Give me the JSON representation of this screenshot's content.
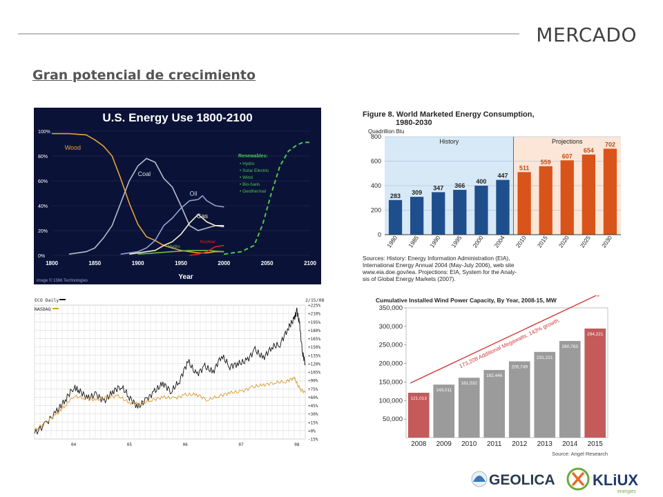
{
  "slide": {
    "title": "MERCADO",
    "subtitle": "Gran potencial de crecimiento"
  },
  "logos": {
    "geolica": "GEOLICA",
    "kliux": "KLiUX",
    "kliux_sub": "energies",
    "geolica_color": "#2b3a4a",
    "kliux_color": "#1f3a68"
  },
  "chart_data": [
    {
      "id": "us-energy",
      "type": "line",
      "title": "U.S. Energy Use 1800-2100",
      "xlabel": "Year",
      "xlim": [
        1800,
        2100
      ],
      "ylim": [
        0,
        100
      ],
      "x_ticks": [
        "1800",
        "1850",
        "1900",
        "1950",
        "2000",
        "2050",
        "2100"
      ],
      "y_ticks": [
        "0%",
        "20%",
        "40%",
        "60%",
        "80%",
        "100%"
      ],
      "legend_title": "Renewables:",
      "legend": [
        "Hydro",
        "Solar Electric",
        "Wind",
        "Bio-fuels",
        "Geothermal"
      ],
      "credit": "image © 1366 Technologies",
      "series": [
        {
          "name": "Wood",
          "color": "#e8a33a",
          "x": [
            1800,
            1820,
            1840,
            1850,
            1860,
            1870,
            1880,
            1890,
            1900,
            1910,
            1920,
            1930,
            1940,
            1950,
            1960,
            1970,
            1980,
            1990,
            2000
          ],
          "y": [
            98,
            98,
            97,
            93,
            88,
            80,
            62,
            42,
            25,
            15,
            12,
            8,
            6,
            4,
            3,
            2,
            2,
            3,
            3
          ]
        },
        {
          "name": "Coal",
          "color": "#b8c0cc",
          "x": [
            1820,
            1840,
            1850,
            1860,
            1870,
            1880,
            1890,
            1900,
            1910,
            1920,
            1930,
            1940,
            1950,
            1960,
            1970,
            1980,
            1990,
            2000
          ],
          "y": [
            1,
            3,
            6,
            14,
            24,
            42,
            60,
            72,
            78,
            75,
            62,
            55,
            40,
            24,
            20,
            22,
            24,
            23
          ]
        },
        {
          "name": "Oil",
          "color": "#8fa6d6",
          "x": [
            1880,
            1890,
            1900,
            1910,
            1920,
            1930,
            1940,
            1950,
            1960,
            1970,
            1975,
            1980,
            1985,
            1990,
            2000
          ],
          "y": [
            1,
            2,
            3,
            6,
            12,
            24,
            30,
            38,
            44,
            45,
            48,
            44,
            42,
            40,
            39
          ]
        },
        {
          "name": "Gas",
          "color": "#f2f2d0",
          "x": [
            1890,
            1900,
            1910,
            1920,
            1930,
            1940,
            1950,
            1960,
            1970,
            1975,
            1980,
            1990,
            2000
          ],
          "y": [
            1,
            2,
            3,
            4,
            8,
            11,
            17,
            26,
            33,
            30,
            27,
            24,
            24
          ]
        },
        {
          "name": "Hydro",
          "color": "#6fbf3e",
          "x": [
            1900,
            1920,
            1940,
            1960,
            1980,
            2000
          ],
          "y": [
            1,
            2,
            3,
            4,
            4,
            3
          ]
        },
        {
          "name": "Nuclear",
          "color": "#e02020",
          "x": [
            1960,
            1970,
            1980,
            1990,
            2000
          ],
          "y": [
            0,
            1,
            3,
            7,
            8
          ]
        },
        {
          "name": "Renewables",
          "color": "#4cc94c",
          "dashed": true,
          "x": [
            2000,
            2020,
            2035,
            2045,
            2055,
            2065,
            2075,
            2085,
            2092,
            2100
          ],
          "y": [
            1,
            3,
            8,
            25,
            50,
            72,
            84,
            89,
            91,
            91
          ]
        }
      ]
    },
    {
      "id": "world-energy",
      "type": "bar",
      "title": "Figure 8.  World Marketed Energy Consumption,",
      "title_line2": "1980-2030",
      "ylabel": "Quadrillion Btu",
      "ylim": [
        0,
        800
      ],
      "y_ticks": [
        "0",
        "200",
        "400",
        "600",
        "800"
      ],
      "history_label": "History",
      "projections_label": "Projections",
      "categories": [
        "1980",
        "1985",
        "1990",
        "1995",
        "2000",
        "2004",
        "2010",
        "2015",
        "2020",
        "2025",
        "2030"
      ],
      "values": [
        283,
        309,
        347,
        366,
        400,
        447,
        511,
        559,
        607,
        654,
        702
      ],
      "value_labels": [
        "283",
        "309",
        "347",
        "366",
        "400",
        "447",
        "511",
        "559",
        "607",
        "654",
        "702"
      ],
      "history_count": 6,
      "history_color": "#1f4e8c",
      "projection_color": "#d9541a",
      "history_bg": "#d7e9f6",
      "projection_bg": "#fbe6d8",
      "sources": [
        "Sources: History: Energy Information Administration (EIA),",
        "International Energy Annual 2004 (May-July 2006), web site",
        "www.eia.doe.gov/iea. Projections: EIA, System for the Analy-",
        "sis of Global Energy Markets (2007)."
      ]
    },
    {
      "id": "stock",
      "type": "line",
      "legend": [
        "ECO Daily",
        "NASDAQ"
      ],
      "date_label": "2/15/08",
      "x_ticks": [
        "04",
        "05",
        "06",
        "07",
        "08"
      ],
      "y_ticks": [
        "+225%",
        "+210%",
        "+195%",
        "+180%",
        "+165%",
        "+150%",
        "+135%",
        "+120%",
        "+105%",
        "+90%",
        "+75%",
        "+60%",
        "+45%",
        "+30%",
        "+15%",
        "+0%",
        "-15%"
      ],
      "ylim": [
        -15,
        225
      ],
      "xlim": [
        2003.3,
        2008.15
      ],
      "series": [
        {
          "name": "ECO Daily",
          "color": "#111111",
          "x": [
            2003.3,
            2003.5,
            2003.7,
            2003.85,
            2004.0,
            2004.1,
            2004.25,
            2004.4,
            2004.55,
            2004.7,
            2004.85,
            2005.0,
            2005.15,
            2005.3,
            2005.45,
            2005.6,
            2005.75,
            2005.9,
            2006.05,
            2006.2,
            2006.35,
            2006.5,
            2006.65,
            2006.8,
            2006.95,
            2007.1,
            2007.25,
            2007.4,
            2007.55,
            2007.7,
            2007.85,
            2007.95,
            2008.0,
            2008.05,
            2008.1,
            2008.15
          ],
          "y": [
            -5,
            12,
            35,
            55,
            78,
            72,
            58,
            65,
            52,
            70,
            80,
            60,
            42,
            55,
            70,
            85,
            70,
            90,
            125,
            100,
            115,
            105,
            135,
            115,
            120,
            125,
            145,
            130,
            150,
            155,
            185,
            200,
            215,
            190,
            140,
            120
          ]
        },
        {
          "name": "NASDAQ",
          "color": "#d89a2c",
          "x": [
            2003.3,
            2003.5,
            2003.7,
            2003.85,
            2004.0,
            2004.2,
            2004.4,
            2004.6,
            2004.8,
            2005.0,
            2005.2,
            2005.4,
            2005.6,
            2005.8,
            2006.0,
            2006.2,
            2006.4,
            2006.6,
            2006.8,
            2007.0,
            2007.2,
            2007.4,
            2007.6,
            2007.8,
            2007.95,
            2008.05,
            2008.15
          ],
          "y": [
            0,
            15,
            30,
            45,
            62,
            58,
            55,
            60,
            62,
            50,
            48,
            55,
            60,
            58,
            64,
            65,
            55,
            62,
            68,
            70,
            78,
            82,
            86,
            88,
            95,
            75,
            68
          ]
        }
      ]
    },
    {
      "id": "wind",
      "type": "bar",
      "title": "Cumulative Installed Wind Power Capacity, By Year, 2008-15, MW",
      "ylim": [
        0,
        350000
      ],
      "y_ticks": [
        "50,000",
        "100,000",
        "150,000",
        "200,000",
        "250,000",
        "300,000",
        "350,000"
      ],
      "categories": [
        "2008",
        "2009",
        "2010",
        "2011",
        "2012",
        "2013",
        "2014",
        "2015"
      ],
      "values": [
        121013,
        143011,
        161532,
        182446,
        205749,
        231221,
        260763,
        294221
      ],
      "value_labels": [
        "121,013",
        "143,011",
        "161,532",
        "182,446",
        "205,749",
        "231,221",
        "260,763",
        "294,221"
      ],
      "annotation": "173,208 Additional Megawatts, 143% growth.",
      "source": "Source: Angel Research",
      "colors": {
        "first": "#c45a5a",
        "middle": "#9b9b9b",
        "last": "#c45a5a",
        "arrow": "#d43a3a"
      }
    }
  ]
}
